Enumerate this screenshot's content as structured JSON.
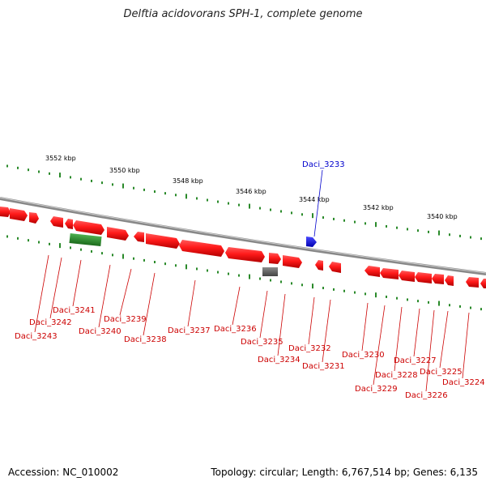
{
  "title": "Delftia acidovorans SPH-1, complete genome",
  "footer": {
    "accession": "Accession: NC_010002",
    "topology": "Topology: circular; Length: 6,767,514 bp; Genes: 6,135"
  },
  "colors": {
    "forward_gene": "#ff0000",
    "reverse_gene": "#ff0000",
    "highlight_gene": "#0000ff",
    "rna_gene": "#2a8a2a",
    "pseudo_gene": "#666666",
    "backbone": "#888888",
    "tick": "#2a8a2a",
    "label": "#cc0000",
    "highlight_label": "#0000cc"
  },
  "scale_labels": [
    "3552 kbp",
    "3550 kbp",
    "3548 kbp",
    "3546 kbp",
    "3544 kbp",
    "3542 kbp",
    "3540 kbp"
  ],
  "highlight_label": "Daci_3233",
  "gene_labels": [
    "Daci_3243",
    "Daci_3242",
    "Daci_3241",
    "Daci_3240",
    "Daci_3239",
    "Daci_3238",
    "Daci_3237",
    "Daci_3236",
    "Daci_3235",
    "Daci_3234",
    "Daci_3232",
    "Daci_3231",
    "Daci_3230",
    "Daci_3229",
    "Daci_3228",
    "Daci_3227",
    "Daci_3226",
    "Daci_3225",
    "Daci_3224"
  ]
}
